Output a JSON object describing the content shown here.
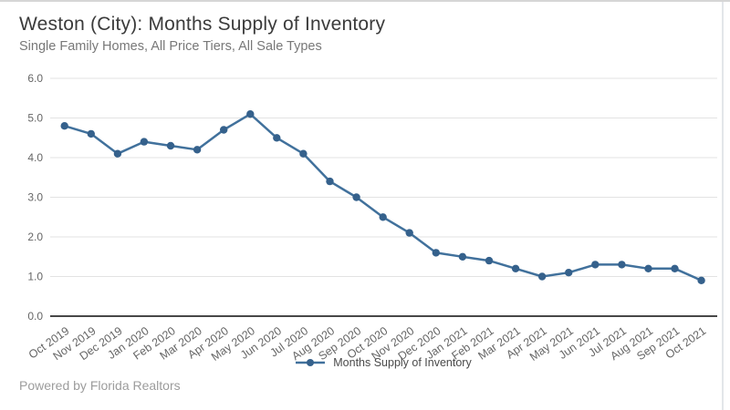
{
  "header": {
    "title": "Weston (City): Months Supply of Inventory",
    "subtitle": "Single Family Homes, All Price Tiers, All Sale Types"
  },
  "chart_data": {
    "type": "line",
    "title": "Weston (City): Months Supply of Inventory",
    "subtitle": "Single Family Homes, All Price Tiers, All Sale Types",
    "categories": [
      "Oct 2019",
      "Nov 2019",
      "Dec 2019",
      "Jan 2020",
      "Feb 2020",
      "Mar 2020",
      "Apr 2020",
      "May 2020",
      "Jun 2020",
      "Jul 2020",
      "Aug 2020",
      "Sep 2020",
      "Oct 2020",
      "Nov 2020",
      "Dec 2020",
      "Jan 2021",
      "Feb 2021",
      "Mar 2021",
      "Apr 2021",
      "May 2021",
      "Jun 2021",
      "Jul 2021",
      "Aug 2021",
      "Sep 2021",
      "Oct 2021"
    ],
    "series": [
      {
        "name": "Months Supply of Inventory",
        "values": [
          4.8,
          4.6,
          4.1,
          4.4,
          4.3,
          4.2,
          4.7,
          5.1,
          4.5,
          4.1,
          3.4,
          3.0,
          2.5,
          2.1,
          1.6,
          1.5,
          1.4,
          1.2,
          1.0,
          1.1,
          1.3,
          1.3,
          1.2,
          1.2,
          0.9
        ]
      }
    ],
    "xlabel": "",
    "ylabel": "",
    "ylim": [
      0.0,
      6.0
    ],
    "yticks": [
      0.0,
      1.0,
      2.0,
      3.0,
      4.0,
      5.0,
      6.0
    ],
    "grid": true,
    "legend_position": "bottom-center",
    "colors": {
      "line": "#41719c",
      "point": "#35618c",
      "gridline": "#e3e3e3",
      "axis_line": "#474747",
      "tick_label": "#666666"
    }
  },
  "legend": {
    "label": "Months Supply of Inventory"
  },
  "footer": {
    "text": "Powered by Florida Realtors"
  }
}
